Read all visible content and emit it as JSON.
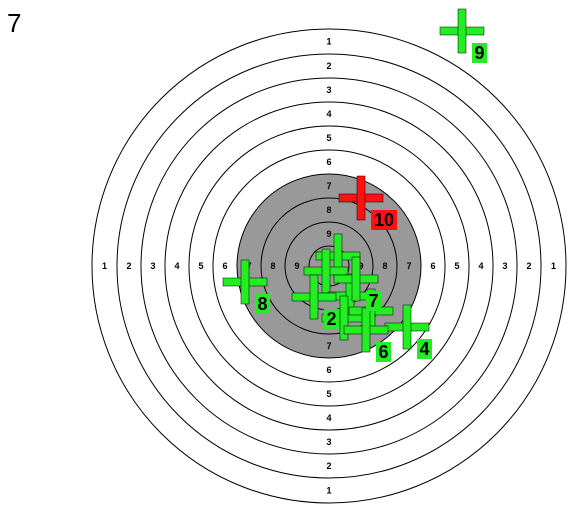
{
  "score": "7",
  "colors": {
    "ring_fill_outer": "#ffffff",
    "ring_fill_inner": "#999999",
    "ring_stroke": "#000000",
    "marker_normal": "#22ee22",
    "marker_last": "#ff1111"
  },
  "target": {
    "ring_labels_outer": [
      "1",
      "2",
      "3",
      "4",
      "5",
      "6"
    ],
    "ring_labels_inner": [
      "7",
      "8",
      "9"
    ]
  },
  "shots": [
    {
      "label": "2",
      "last": false
    },
    {
      "label": "4",
      "last": false
    },
    {
      "label": "6",
      "last": false
    },
    {
      "label": "7",
      "last": false
    },
    {
      "label": "8",
      "last": false
    },
    {
      "label": "9",
      "last": false
    },
    {
      "label": "10",
      "last": true
    }
  ]
}
